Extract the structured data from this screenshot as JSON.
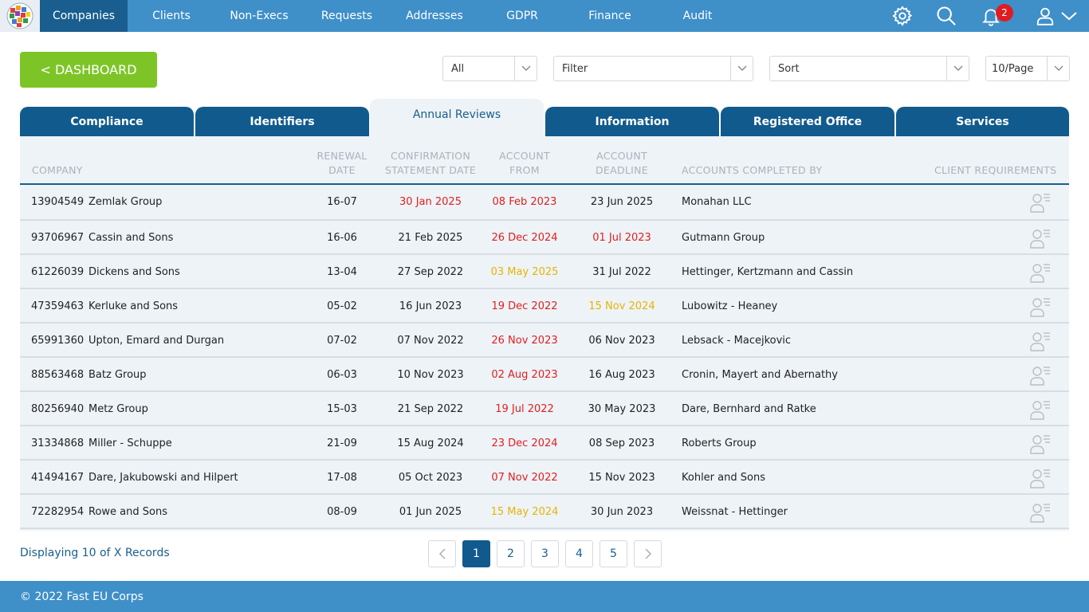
{
  "nav": {
    "items": [
      {
        "label": "Companies",
        "active": true
      },
      {
        "label": "Clients"
      },
      {
        "label": "Non-Execs"
      },
      {
        "label": "Requests"
      },
      {
        "label": "Addresses"
      },
      {
        "label": "GDPR"
      },
      {
        "label": "Finance"
      },
      {
        "label": "Audit"
      }
    ],
    "icons": [
      "gear-icon",
      "search-icon",
      "bell-icon",
      "user-icon",
      "chevron-down-icon"
    ],
    "notification_count": "2"
  },
  "toolbar": {
    "dashboard_label": "< DASHBOARD",
    "scope_value": "All",
    "filter_value": "Filter",
    "sort_value": "Sort",
    "per_page_value": "10/Page"
  },
  "tabs": [
    {
      "label": "Compliance"
    },
    {
      "label": "Identifiers"
    },
    {
      "label": "Annual Reviews",
      "active": true
    },
    {
      "label": "Information"
    },
    {
      "label": "Registered Office"
    },
    {
      "label": "Services"
    }
  ],
  "table": {
    "headers": {
      "company": "COMPANY",
      "renewal_1": "RENEWAL",
      "renewal_2": "DATE",
      "confirmation_1": "CONFIRMATION",
      "confirmation_2": "STATEMENT DATE",
      "from_1": "ACCOUNT",
      "from_2": "FROM",
      "deadline_1": "ACCOUNT",
      "deadline_2": "DEADLINE",
      "completed_by": "ACCOUNTS COMPLETED BY",
      "requirements": "CLIENT REQUIREMENTS"
    },
    "rows": [
      {
        "number": "13904549",
        "name": "Zemlak Group",
        "renewal": "16-07",
        "confirmation": "30 Jan 2025",
        "confirmation_status": "red",
        "from": "08 Feb 2023",
        "from_status": "red",
        "deadline": "23 Jun 2025",
        "deadline_status": "normal",
        "completed_by": "Monahan LLC"
      },
      {
        "number": "93706967",
        "name": "Cassin and Sons",
        "renewal": "16-06",
        "confirmation": "21 Feb 2025",
        "confirmation_status": "normal",
        "from": "26 Dec 2024",
        "from_status": "red",
        "deadline": "01 Jul 2023",
        "deadline_status": "red",
        "completed_by": "Gutmann Group"
      },
      {
        "number": "61226039",
        "name": "Dickens and Sons",
        "renewal": "13-04",
        "confirmation": "27 Sep 2022",
        "confirmation_status": "normal",
        "from": "03 May 2025",
        "from_status": "amber",
        "deadline": "31 Jul 2022",
        "deadline_status": "normal",
        "completed_by": "Hettinger, Kertzmann and Cassin"
      },
      {
        "number": "47359463",
        "name": "Kerluke and Sons",
        "renewal": "05-02",
        "confirmation": "16 Jun 2023",
        "confirmation_status": "normal",
        "from": "19 Dec 2022",
        "from_status": "red",
        "deadline": "15 Nov 2024",
        "deadline_status": "amber",
        "completed_by": "Lubowitz - Heaney"
      },
      {
        "number": "65991360",
        "name": "Upton, Emard and Durgan",
        "renewal": "07-02",
        "confirmation": "07 Nov 2022",
        "confirmation_status": "normal",
        "from": "26 Nov 2023",
        "from_status": "red",
        "deadline": "06 Nov 2023",
        "deadline_status": "normal",
        "completed_by": "Lebsack - Macejkovic"
      },
      {
        "number": "88563468",
        "name": "Batz Group",
        "renewal": "06-03",
        "confirmation": "10 Nov 2023",
        "confirmation_status": "normal",
        "from": "02 Aug 2023",
        "from_status": "red",
        "deadline": "16 Aug 2023",
        "deadline_status": "normal",
        "completed_by": "Cronin, Mayert and Abernathy"
      },
      {
        "number": "80256940",
        "name": "Metz Group",
        "renewal": "15-03",
        "confirmation": "21 Sep 2022",
        "confirmation_status": "normal",
        "from": "19 Jul 2022",
        "from_status": "red",
        "deadline": "30 May 2023",
        "deadline_status": "normal",
        "completed_by": "Dare, Bernhard and Ratke"
      },
      {
        "number": "31334868",
        "name": "Miller - Schuppe",
        "renewal": "21-09",
        "confirmation": "15 Aug 2024",
        "confirmation_status": "normal",
        "from": "23 Dec 2024",
        "from_status": "red",
        "deadline": "08 Sep 2023",
        "deadline_status": "normal",
        "completed_by": "Roberts Group"
      },
      {
        "number": "41494167",
        "name": "Dare, Jakubowski and Hilpert",
        "renewal": "17-08",
        "confirmation": "05 Oct 2023",
        "confirmation_status": "normal",
        "from": "07 Nov 2022",
        "from_status": "red",
        "deadline": "15 Nov 2023",
        "deadline_status": "normal",
        "completed_by": "Kohler and Sons"
      },
      {
        "number": "72282954",
        "name": "Rowe and Sons",
        "renewal": "08-09",
        "confirmation": "01 Jun 2025",
        "confirmation_status": "normal",
        "from": "15 May 2024",
        "from_status": "amber",
        "deadline": "30 Jun 2023",
        "deadline_status": "normal",
        "completed_by": "Weissnat - Hettinger"
      }
    ]
  },
  "pagination": {
    "records_text": "Displaying 10 of X Records",
    "pages": [
      "1",
      "2",
      "3",
      "4",
      "5"
    ],
    "current": "1"
  },
  "footer": {
    "text": "© 2022 Fast EU Corps"
  },
  "colors": {
    "nav": "#3f8fc9",
    "nav_active": "#1a5e8f",
    "tab": "#115a8d",
    "dashboard": "#7dc527",
    "overdue": "#e02020",
    "warning": "#e8b400"
  }
}
